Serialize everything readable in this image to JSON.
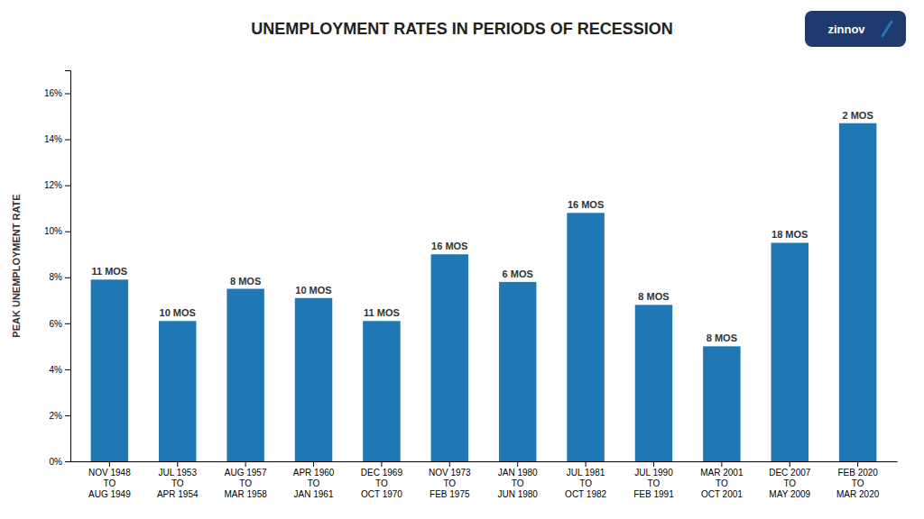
{
  "chart_data": {
    "type": "bar",
    "title": "UNEMPLOYMENT RATES IN PERIODS OF RECESSION",
    "y_label": "PEAK UNEMPLOYMENT RATE",
    "logo": "zinnov",
    "categories": [
      "NOV 1948\nTO\nAUG 1949",
      "JUL 1953\nTO\nAPR 1954",
      "AUG 1957\nTO\nMAR 1958",
      "APR 1960\nTO\nJAN 1961",
      "DEC 1969\nTO\nOCT 1970",
      "NOV 1973\nTO\nFEB 1975",
      "JAN 1980\nTO\nJUN 1980",
      "JUL 1981\nTO\nOCT 1982",
      "JUL 1990\nTO\nFEB 1991",
      "MAR 2001\nTO\nOCT 2001",
      "DEC 2007\nTO\nMAY 2009",
      "FEB 2020\nTO\nMAR 2020"
    ],
    "values": [
      7.9,
      6.1,
      7.5,
      7.1,
      6.1,
      9.0,
      7.8,
      10.8,
      6.8,
      5.0,
      9.5,
      14.7
    ],
    "annotations": [
      "11 MOS",
      "10 MOS",
      "8 MOS",
      "10 MOS",
      "11 MOS",
      "16 MOS",
      "6 MOS",
      "16 MOS",
      "8 MOS",
      "8 MOS",
      "18 MOS",
      "2 MOS"
    ],
    "ylim": [
      0,
      17
    ],
    "yticks": [
      {
        "value": 0,
        "label": "0%"
      },
      {
        "value": 2,
        "label": "2%"
      },
      {
        "value": 4,
        "label": "4%"
      },
      {
        "value": 6,
        "label": "6%"
      },
      {
        "value": 8,
        "label": "8%"
      },
      {
        "value": 10,
        "label": "10%"
      },
      {
        "value": 12,
        "label": "12%"
      },
      {
        "value": 14,
        "label": "14%"
      },
      {
        "value": 16,
        "label": "16%"
      }
    ],
    "grid": false
  }
}
